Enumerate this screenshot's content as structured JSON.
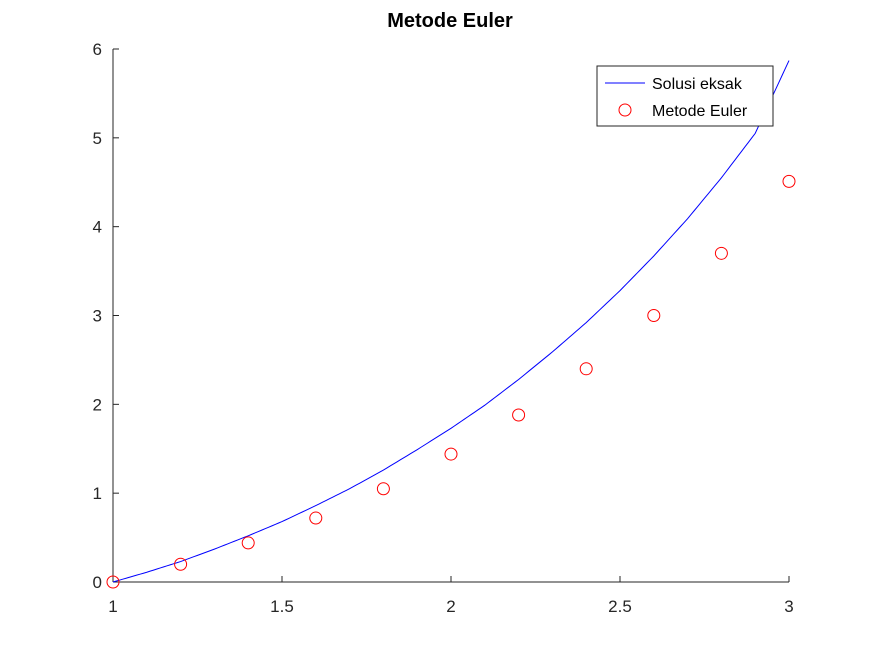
{
  "chart_data": {
    "type": "line",
    "title": "Metode Euler",
    "xlabel": "",
    "ylabel": "",
    "xlim": [
      1,
      3
    ],
    "ylim": [
      0,
      6
    ],
    "x_ticks": [
      1,
      1.5,
      2,
      2.5,
      3
    ],
    "x_tick_labels": [
      "1",
      "1.5",
      "2",
      "2.5",
      "3"
    ],
    "y_ticks": [
      0,
      1,
      2,
      3,
      4,
      5,
      6
    ],
    "y_tick_labels": [
      "0",
      "1",
      "2",
      "3",
      "4",
      "5",
      "6"
    ],
    "grid": false,
    "legend_position": "top-right",
    "series": [
      {
        "name": "Solusi eksak",
        "style": "line",
        "color": "#0000ff",
        "x": [
          1.0,
          1.1,
          1.2,
          1.3,
          1.4,
          1.5,
          1.6,
          1.7,
          1.8,
          1.9,
          2.0,
          2.1,
          2.2,
          2.3,
          2.4,
          2.5,
          2.6,
          2.7,
          2.8,
          2.9,
          3.0
        ],
        "y": [
          0.0,
          0.11,
          0.23,
          0.37,
          0.52,
          0.68,
          0.86,
          1.05,
          1.26,
          1.49,
          1.73,
          1.99,
          2.28,
          2.59,
          2.92,
          3.28,
          3.67,
          4.09,
          4.55,
          5.05,
          5.87
        ]
      },
      {
        "name": "Metode Euler",
        "style": "markers",
        "marker": "circle",
        "color": "#ff0000",
        "x": [
          1.0,
          1.2,
          1.4,
          1.6,
          1.8,
          2.0,
          2.2,
          2.4,
          2.6,
          2.8,
          3.0
        ],
        "y": [
          0.0,
          0.2,
          0.44,
          0.72,
          1.05,
          1.44,
          1.88,
          2.4,
          3.0,
          3.7,
          4.51
        ]
      }
    ]
  }
}
